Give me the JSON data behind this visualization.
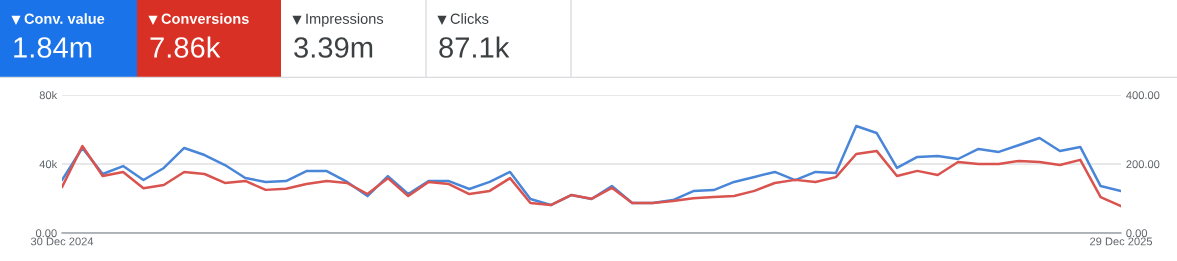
{
  "chart_data": [
    {
      "type": "other",
      "annotations": [
        "Conv. value",
        "1.84m",
        "Conversions",
        "7.86k",
        "Impressions",
        "3.39m",
        "Clicks",
        "87.1k"
      ],
      "colors": [
        "#1a73e8",
        "#d93025",
        "#ffffff",
        "#ffffff"
      ]
    },
    {
      "type": "line",
      "x": [
        "2024-12-30",
        "2025-01-06",
        "2025-01-13",
        "2025-01-20",
        "2025-01-27",
        "2025-02-03",
        "2025-02-10",
        "2025-02-17",
        "2025-02-24",
        "2025-03-03",
        "2025-03-10",
        "2025-03-17",
        "2025-03-24",
        "2025-03-31",
        "2025-04-07",
        "2025-04-14",
        "2025-04-21",
        "2025-04-28",
        "2025-05-05",
        "2025-05-12",
        "2025-05-19",
        "2025-05-26",
        "2025-06-02",
        "2025-06-09",
        "2025-06-16",
        "2025-06-23",
        "2025-06-30",
        "2025-07-07",
        "2025-07-14",
        "2025-07-21",
        "2025-07-28",
        "2025-08-04",
        "2025-08-11",
        "2025-08-18",
        "2025-08-25",
        "2025-09-01",
        "2025-09-08",
        "2025-09-15",
        "2025-09-22",
        "2025-09-29",
        "2025-10-06",
        "2025-10-13",
        "2025-10-20",
        "2025-10-27",
        "2025-11-03",
        "2025-11-10",
        "2025-11-17",
        "2025-11-24",
        "2025-12-01",
        "2025-12-08",
        "2025-12-15",
        "2025-12-22",
        "2025-12-29"
      ],
      "series": [
        {
          "color": "#4a86d8",
          "values": [
            30700,
            49300,
            34200,
            38800,
            30700,
            37700,
            49300,
            45200,
            39400,
            31900,
            29600,
            30100,
            35900,
            35900,
            29600,
            21400,
            33000,
            22600,
            30100,
            30100,
            25500,
            29600,
            35400,
            19700,
            16200,
            22000,
            19700,
            27200,
            17400,
            17400,
            19100,
            24300,
            24900,
            29600,
            32500,
            35400,
            30700,
            35400,
            34800,
            62000,
            58000,
            37700,
            44100,
            44600,
            42900,
            48700,
            47000,
            51000,
            55100,
            47500,
            49900,
            27200,
            24300
          ]
        },
        {
          "color": "#d9534f",
          "axis": "y2",
          "values": [
            133,
            252,
            165,
            177,
            130,
            139,
            177,
            171,
            145,
            151,
            125,
            128,
            142,
            151,
            145,
            113,
            159,
            107,
            148,
            142,
            113,
            122,
            159,
            87,
            81,
            110,
            99,
            131,
            87,
            87,
            93,
            101,
            104,
            107,
            122,
            145,
            154,
            148,
            162,
            229,
            238,
            165,
            180,
            168,
            206,
            200,
            200,
            209,
            206,
            197,
            212,
            104,
            78
          ]
        }
      ],
      "xlim": [
        "2024-12-30",
        "2025-12-29"
      ],
      "xticks": [
        {
          "value": "2024-12-30",
          "label": "30 Dec 2024"
        },
        {
          "value": "2025-12-29",
          "label": "29 Dec 2025"
        }
      ],
      "ylim": [
        0,
        80000
      ],
      "yticks": [
        {
          "value": 0,
          "label": "0.00"
        },
        {
          "value": 40000,
          "label": "40k"
        },
        {
          "value": 80000,
          "label": "80k"
        }
      ],
      "y2lim": [
        0,
        400
      ],
      "y2ticks": [
        {
          "value": 0,
          "label": "0.00"
        },
        {
          "value": 200,
          "label": "200.00"
        },
        {
          "value": 400,
          "label": "400.00"
        }
      ],
      "grid": "y",
      "marker": "none",
      "line_style": "solid"
    }
  ]
}
